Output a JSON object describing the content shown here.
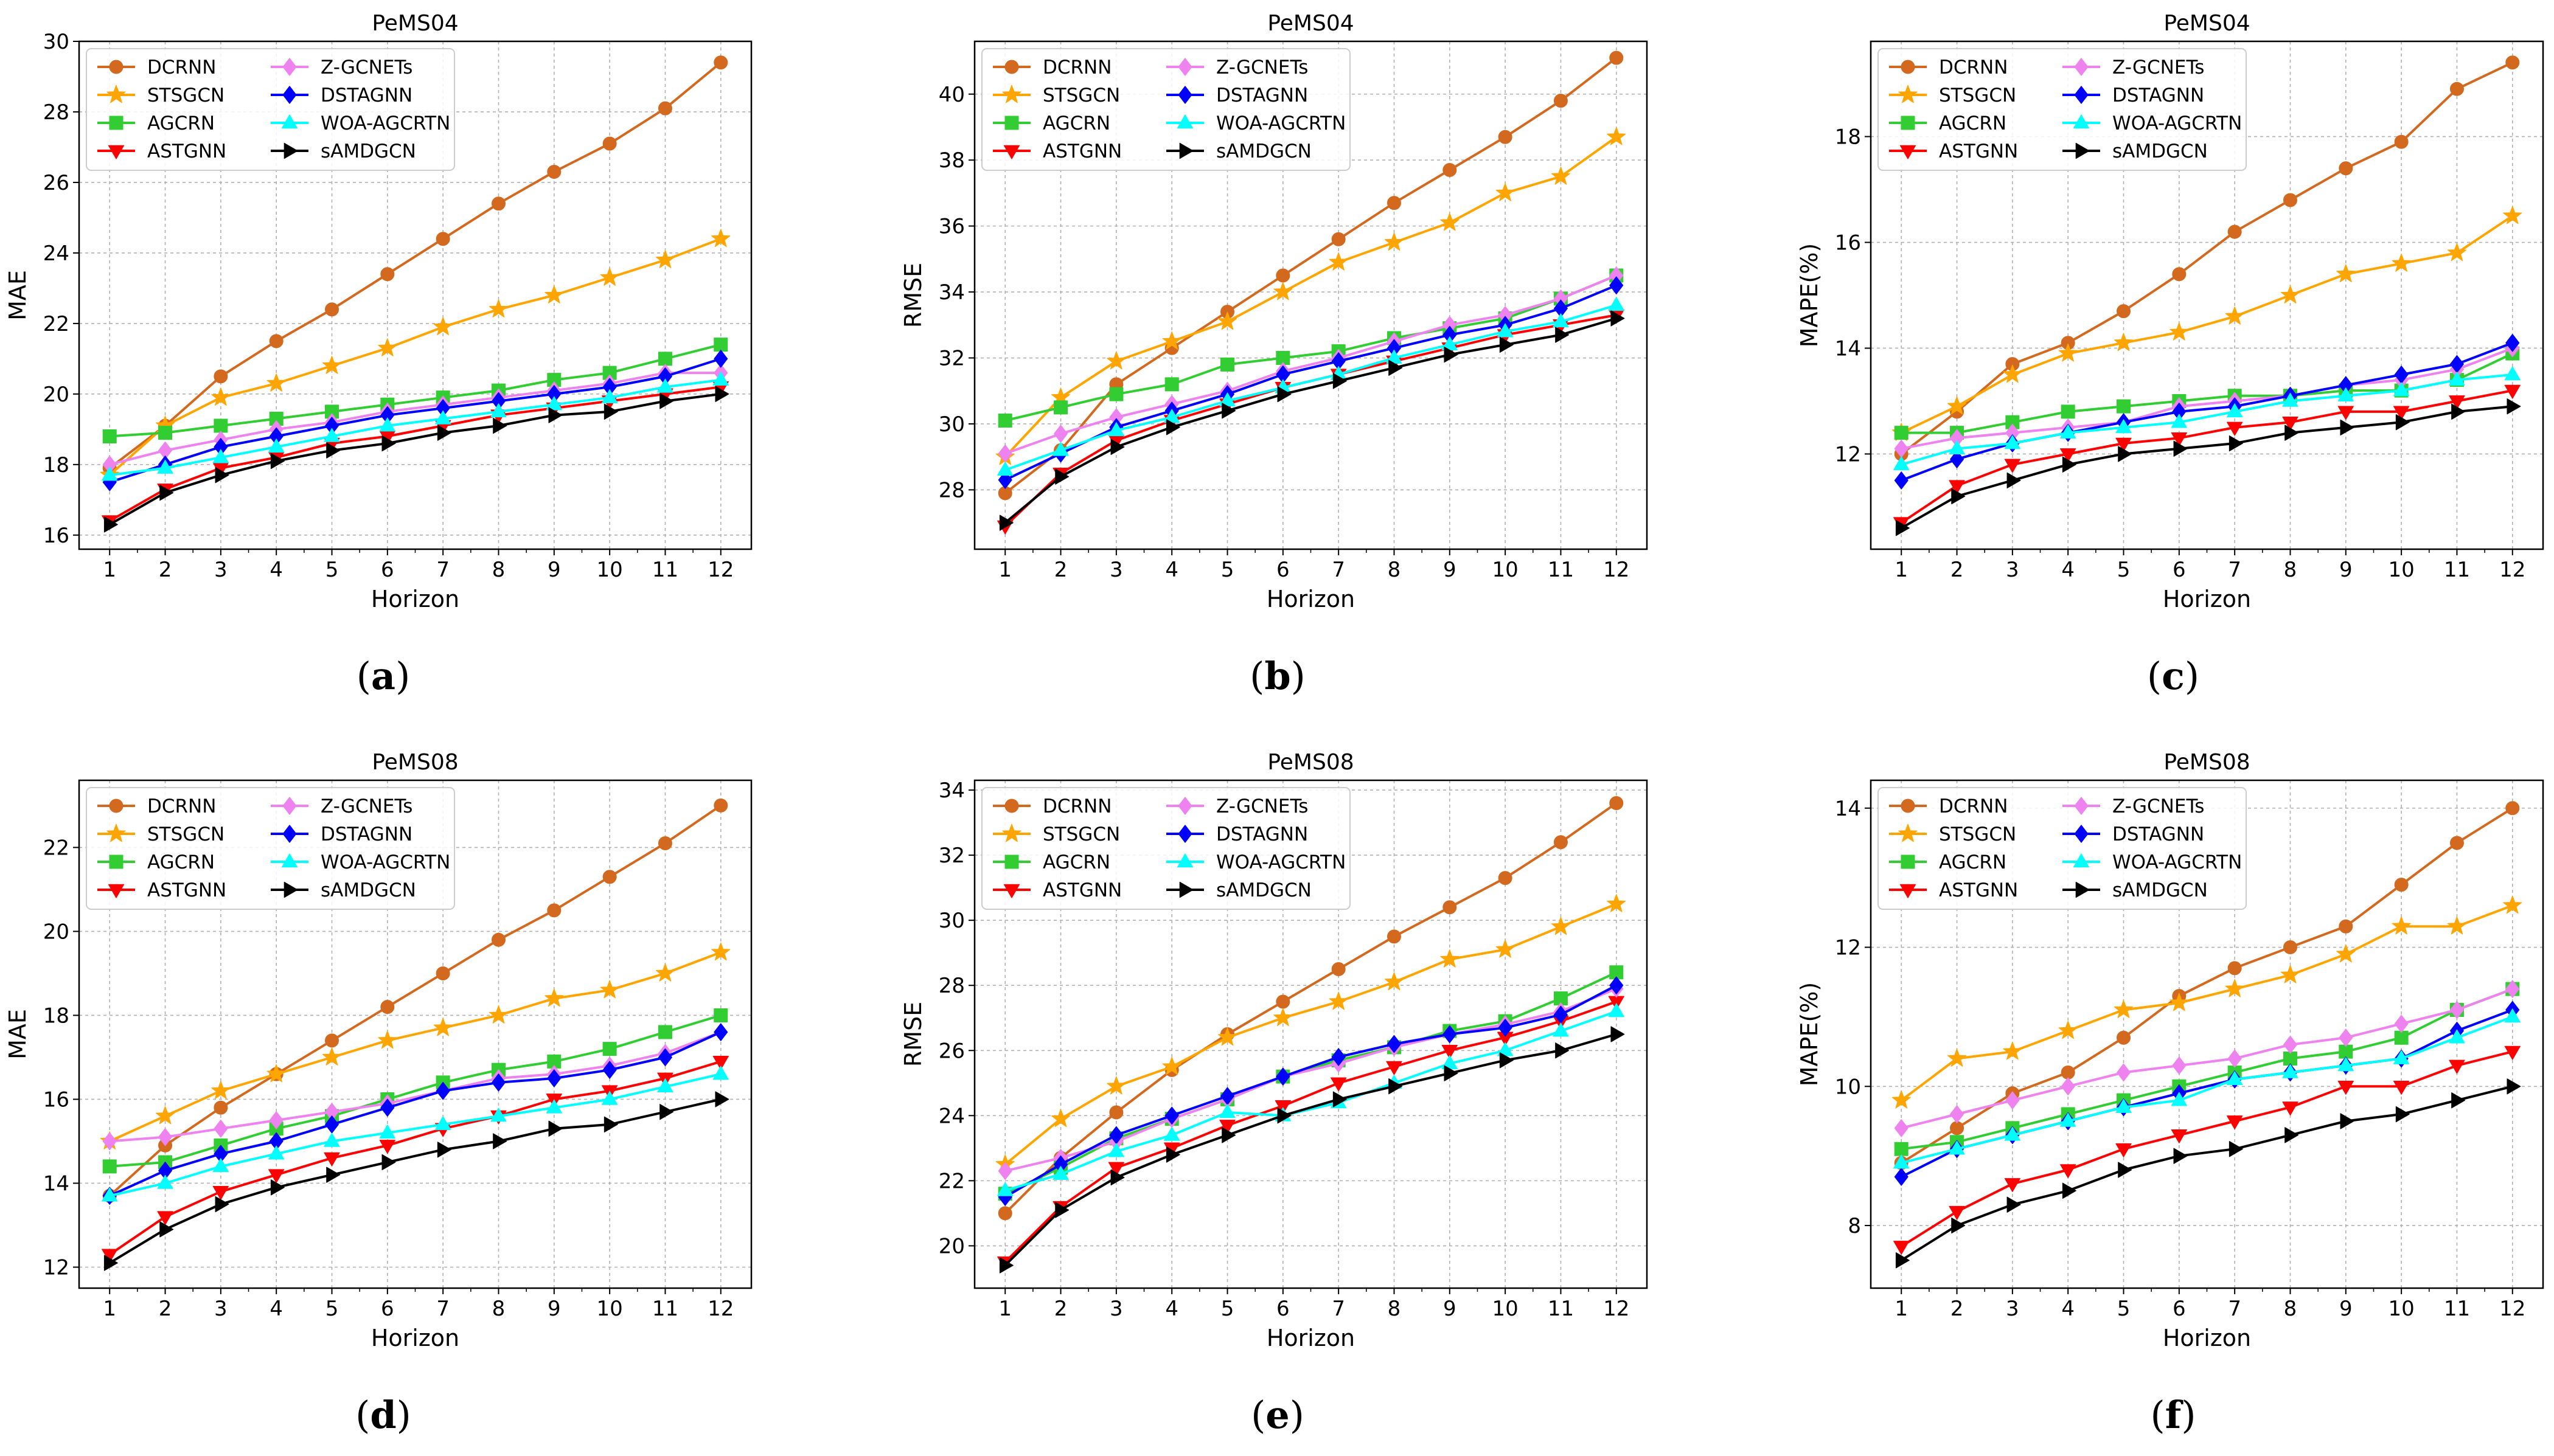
{
  "legend_labels": [
    "DCRNN",
    "STSGCN",
    "AGCRN",
    "ASTGNN",
    "Z-GCNETs",
    "DSTAGNN",
    "WOA-AGCRTN",
    "sAMDGCN"
  ],
  "series_style": [
    {
      "color": "#d2691e",
      "marker": "circle"
    },
    {
      "color": "#ffa500",
      "marker": "star"
    },
    {
      "color": "#32cd32",
      "marker": "square"
    },
    {
      "color": "#ff0000",
      "marker": "triangle-down"
    },
    {
      "color": "#ee82ee",
      "marker": "diamond"
    },
    {
      "color": "#0000ff",
      "marker": "diamond"
    },
    {
      "color": "#00ffff",
      "marker": "triangle-up"
    },
    {
      "color": "#000000",
      "marker": "triangle-right"
    }
  ],
  "captions": [
    "a",
    "b",
    "c",
    "d",
    "e",
    "f"
  ],
  "chart_data": [
    {
      "type": "line",
      "title": "PeMS04",
      "xlabel": "Horizon",
      "ylabel": "MAE",
      "x": [
        1,
        2,
        3,
        4,
        5,
        6,
        7,
        8,
        9,
        10,
        11,
        12
      ],
      "ylim": [
        15.6,
        30.0
      ],
      "yticks": [
        16,
        18,
        20,
        22,
        24,
        26,
        28,
        30
      ],
      "grid": true,
      "legend": "upper-left",
      "series": [
        {
          "name": "DCRNN",
          "values": [
            17.9,
            19.1,
            20.5,
            21.5,
            22.4,
            23.4,
            24.4,
            25.4,
            26.3,
            27.1,
            28.1,
            29.4
          ]
        },
        {
          "name": "STSGCN",
          "values": [
            17.7,
            19.1,
            19.9,
            20.3,
            20.8,
            21.3,
            21.9,
            22.4,
            22.8,
            23.3,
            23.8,
            24.4
          ]
        },
        {
          "name": "AGCRN",
          "values": [
            18.8,
            18.9,
            19.1,
            19.3,
            19.5,
            19.7,
            19.9,
            20.1,
            20.4,
            20.6,
            21.0,
            21.4
          ]
        },
        {
          "name": "ASTGNN",
          "values": [
            16.4,
            17.3,
            17.9,
            18.2,
            18.6,
            18.8,
            19.1,
            19.4,
            19.6,
            19.8,
            20.0,
            20.2
          ]
        },
        {
          "name": "Z-GCNETs",
          "values": [
            18.0,
            18.4,
            18.7,
            19.0,
            19.2,
            19.5,
            19.7,
            19.9,
            20.1,
            20.3,
            20.6,
            20.6
          ]
        },
        {
          "name": "DSTAGNN",
          "values": [
            17.5,
            18.0,
            18.5,
            18.8,
            19.1,
            19.4,
            19.6,
            19.8,
            20.0,
            20.2,
            20.5,
            21.0
          ]
        },
        {
          "name": "WOA-AGCRTN",
          "values": [
            17.7,
            17.9,
            18.2,
            18.5,
            18.8,
            19.1,
            19.3,
            19.5,
            19.7,
            19.9,
            20.2,
            20.4
          ]
        },
        {
          "name": "sAMDGCN",
          "values": [
            16.3,
            17.2,
            17.7,
            18.1,
            18.4,
            18.6,
            18.9,
            19.1,
            19.4,
            19.5,
            19.8,
            20.0
          ]
        }
      ]
    },
    {
      "type": "line",
      "title": "PeMS04",
      "xlabel": "Horizon",
      "ylabel": "RMSE",
      "x": [
        1,
        2,
        3,
        4,
        5,
        6,
        7,
        8,
        9,
        10,
        11,
        12
      ],
      "ylim": [
        26.2,
        41.6
      ],
      "yticks": [
        28,
        30,
        32,
        34,
        36,
        38,
        40
      ],
      "grid": true,
      "legend": "upper-left",
      "series": [
        {
          "name": "DCRNN",
          "values": [
            27.9,
            29.2,
            31.2,
            32.3,
            33.4,
            34.5,
            35.6,
            36.7,
            37.7,
            38.7,
            39.8,
            41.1
          ]
        },
        {
          "name": "STSGCN",
          "values": [
            29.0,
            30.8,
            31.9,
            32.5,
            33.1,
            34.0,
            34.9,
            35.5,
            36.1,
            37.0,
            37.5,
            38.7
          ]
        },
        {
          "name": "AGCRN",
          "values": [
            30.1,
            30.5,
            30.9,
            31.2,
            31.8,
            32.0,
            32.2,
            32.6,
            32.9,
            33.2,
            33.8,
            34.5
          ]
        },
        {
          "name": "ASTGNN",
          "values": [
            26.9,
            28.5,
            29.5,
            30.1,
            30.6,
            31.1,
            31.5,
            31.9,
            32.3,
            32.7,
            33.0,
            33.3
          ]
        },
        {
          "name": "Z-GCNETs",
          "values": [
            29.1,
            29.7,
            30.2,
            30.6,
            31.0,
            31.6,
            32.0,
            32.5,
            33.0,
            33.3,
            33.8,
            34.5
          ]
        },
        {
          "name": "DSTAGNN",
          "values": [
            28.3,
            29.1,
            29.9,
            30.4,
            30.9,
            31.5,
            31.9,
            32.3,
            32.7,
            33.0,
            33.5,
            34.2
          ]
        },
        {
          "name": "WOA-AGCRTN",
          "values": [
            28.6,
            29.2,
            29.8,
            30.2,
            30.7,
            31.1,
            31.5,
            32.0,
            32.4,
            32.8,
            33.1,
            33.6
          ]
        },
        {
          "name": "sAMDGCN",
          "values": [
            27.0,
            28.4,
            29.3,
            29.9,
            30.4,
            30.9,
            31.3,
            31.7,
            32.1,
            32.4,
            32.7,
            33.2
          ]
        }
      ]
    },
    {
      "type": "line",
      "title": "PeMS04",
      "xlabel": "Horizon",
      "ylabel": "MAPE(%)",
      "x": [
        1,
        2,
        3,
        4,
        5,
        6,
        7,
        8,
        9,
        10,
        11,
        12
      ],
      "ylim": [
        10.2,
        19.8
      ],
      "yticks": [
        12,
        14,
        16,
        18
      ],
      "grid": true,
      "legend": "upper-left",
      "series": [
        {
          "name": "DCRNN",
          "values": [
            12.0,
            12.8,
            13.7,
            14.1,
            14.7,
            15.4,
            16.2,
            16.8,
            17.4,
            17.9,
            18.9,
            19.4
          ]
        },
        {
          "name": "STSGCN",
          "values": [
            12.4,
            12.9,
            13.5,
            13.9,
            14.1,
            14.3,
            14.6,
            15.0,
            15.4,
            15.6,
            15.8,
            16.5
          ]
        },
        {
          "name": "AGCRN",
          "values": [
            12.4,
            12.4,
            12.6,
            12.8,
            12.9,
            13.0,
            13.1,
            13.1,
            13.2,
            13.2,
            13.4,
            13.9
          ]
        },
        {
          "name": "ASTGNN",
          "values": [
            10.7,
            11.4,
            11.8,
            12.0,
            12.2,
            12.3,
            12.5,
            12.6,
            12.8,
            12.8,
            13.0,
            13.2
          ]
        },
        {
          "name": "Z-GCNETs",
          "values": [
            12.1,
            12.3,
            12.4,
            12.5,
            12.6,
            12.9,
            13.0,
            13.1,
            13.3,
            13.4,
            13.6,
            14.0
          ]
        },
        {
          "name": "DSTAGNN",
          "values": [
            11.5,
            11.9,
            12.2,
            12.4,
            12.6,
            12.8,
            12.9,
            13.1,
            13.3,
            13.5,
            13.7,
            14.1
          ]
        },
        {
          "name": "WOA-AGCRTN",
          "values": [
            11.8,
            12.1,
            12.2,
            12.4,
            12.5,
            12.6,
            12.8,
            13.0,
            13.1,
            13.2,
            13.4,
            13.5
          ]
        },
        {
          "name": "sAMDGCN",
          "values": [
            10.6,
            11.2,
            11.5,
            11.8,
            12.0,
            12.1,
            12.2,
            12.4,
            12.5,
            12.6,
            12.8,
            12.9
          ]
        }
      ]
    },
    {
      "type": "line",
      "title": "PeMS08",
      "xlabel": "Horizon",
      "ylabel": "MAE",
      "x": [
        1,
        2,
        3,
        4,
        5,
        6,
        7,
        8,
        9,
        10,
        11,
        12
      ],
      "ylim": [
        11.5,
        23.6
      ],
      "yticks": [
        12,
        14,
        16,
        18,
        20,
        22
      ],
      "grid": true,
      "legend": "upper-left",
      "series": [
        {
          "name": "DCRNN",
          "values": [
            13.7,
            14.9,
            15.8,
            16.6,
            17.4,
            18.2,
            19.0,
            19.8,
            20.5,
            21.3,
            22.1,
            23.0
          ]
        },
        {
          "name": "STSGCN",
          "values": [
            15.0,
            15.6,
            16.2,
            16.6,
            17.0,
            17.4,
            17.7,
            18.0,
            18.4,
            18.6,
            19.0,
            19.5
          ]
        },
        {
          "name": "AGCRN",
          "values": [
            14.4,
            14.5,
            14.9,
            15.3,
            15.6,
            16.0,
            16.4,
            16.7,
            16.9,
            17.2,
            17.6,
            18.0
          ]
        },
        {
          "name": "ASTGNN",
          "values": [
            12.3,
            13.2,
            13.8,
            14.2,
            14.6,
            14.9,
            15.3,
            15.6,
            16.0,
            16.2,
            16.5,
            16.9
          ]
        },
        {
          "name": "Z-GCNETs",
          "values": [
            15.0,
            15.1,
            15.3,
            15.5,
            15.7,
            15.9,
            16.2,
            16.5,
            16.6,
            16.8,
            17.1,
            17.6
          ]
        },
        {
          "name": "DSTAGNN",
          "values": [
            13.7,
            14.3,
            14.7,
            15.0,
            15.4,
            15.8,
            16.2,
            16.4,
            16.5,
            16.7,
            17.0,
            17.6
          ]
        },
        {
          "name": "WOA-AGCRTN",
          "values": [
            13.7,
            14.0,
            14.4,
            14.7,
            15.0,
            15.2,
            15.4,
            15.6,
            15.8,
            16.0,
            16.3,
            16.6
          ]
        },
        {
          "name": "sAMDGCN",
          "values": [
            12.1,
            12.9,
            13.5,
            13.9,
            14.2,
            14.5,
            14.8,
            15.0,
            15.3,
            15.4,
            15.7,
            16.0
          ]
        }
      ]
    },
    {
      "type": "line",
      "title": "PeMS08",
      "xlabel": "Horizon",
      "ylabel": "RMSE",
      "x": [
        1,
        2,
        3,
        4,
        5,
        6,
        7,
        8,
        9,
        10,
        11,
        12
      ],
      "ylim": [
        18.7,
        34.3
      ],
      "yticks": [
        20,
        22,
        24,
        26,
        28,
        30,
        32,
        34
      ],
      "grid": true,
      "legend": "upper-left",
      "series": [
        {
          "name": "DCRNN",
          "values": [
            21.0,
            22.7,
            24.1,
            25.4,
            26.5,
            27.5,
            28.5,
            29.5,
            30.4,
            31.3,
            32.4,
            33.6
          ]
        },
        {
          "name": "STSGCN",
          "values": [
            22.5,
            23.9,
            24.9,
            25.5,
            26.4,
            27.0,
            27.5,
            28.1,
            28.8,
            29.1,
            29.8,
            30.5
          ]
        },
        {
          "name": "AGCRN",
          "values": [
            21.6,
            22.4,
            23.3,
            23.9,
            24.5,
            25.2,
            25.7,
            26.1,
            26.6,
            26.9,
            27.6,
            28.4
          ]
        },
        {
          "name": "ASTGNN",
          "values": [
            19.5,
            21.2,
            22.4,
            23.0,
            23.7,
            24.3,
            25.0,
            25.5,
            26.0,
            26.4,
            26.9,
            27.5
          ]
        },
        {
          "name": "Z-GCNETs",
          "values": [
            22.3,
            22.7,
            23.2,
            23.9,
            24.5,
            25.2,
            25.6,
            26.1,
            26.5,
            26.8,
            27.2,
            27.9
          ]
        },
        {
          "name": "DSTAGNN",
          "values": [
            21.5,
            22.5,
            23.4,
            24.0,
            24.6,
            25.2,
            25.8,
            26.2,
            26.5,
            26.7,
            27.1,
            28.0
          ]
        },
        {
          "name": "WOA-AGCRTN",
          "values": [
            21.7,
            22.2,
            22.9,
            23.4,
            24.1,
            24.0,
            24.4,
            25.0,
            25.6,
            26.0,
            26.6,
            27.2
          ]
        },
        {
          "name": "sAMDGCN",
          "values": [
            19.4,
            21.1,
            22.1,
            22.8,
            23.4,
            24.0,
            24.5,
            24.9,
            25.3,
            25.7,
            26.0,
            26.5
          ]
        }
      ]
    },
    {
      "type": "line",
      "title": "PeMS08",
      "xlabel": "Horizon",
      "ylabel": "MAPE(%)",
      "x": [
        1,
        2,
        3,
        4,
        5,
        6,
        7,
        8,
        9,
        10,
        11,
        12
      ],
      "ylim": [
        7.1,
        14.4
      ],
      "yticks": [
        8,
        10,
        12,
        14
      ],
      "grid": true,
      "legend": "upper-left",
      "series": [
        {
          "name": "DCRNN",
          "values": [
            8.9,
            9.4,
            9.9,
            10.2,
            10.7,
            11.3,
            11.7,
            12.0,
            12.3,
            12.9,
            13.5,
            14.0
          ]
        },
        {
          "name": "STSGCN",
          "values": [
            9.8,
            10.4,
            10.5,
            10.8,
            11.1,
            11.2,
            11.4,
            11.6,
            11.9,
            12.3,
            12.3,
            12.6
          ]
        },
        {
          "name": "AGCRN",
          "values": [
            9.1,
            9.2,
            9.4,
            9.6,
            9.8,
            10.0,
            10.2,
            10.4,
            10.5,
            10.7,
            11.1,
            11.4
          ]
        },
        {
          "name": "ASTGNN",
          "values": [
            7.7,
            8.2,
            8.6,
            8.8,
            9.1,
            9.3,
            9.5,
            9.7,
            10.0,
            10.0,
            10.3,
            10.5
          ]
        },
        {
          "name": "Z-GCNETs",
          "values": [
            9.4,
            9.6,
            9.8,
            10.0,
            10.2,
            10.3,
            10.4,
            10.6,
            10.7,
            10.9,
            11.1,
            11.4
          ]
        },
        {
          "name": "DSTAGNN",
          "values": [
            8.7,
            9.1,
            9.3,
            9.5,
            9.7,
            9.9,
            10.1,
            10.2,
            10.3,
            10.4,
            10.8,
            11.1
          ]
        },
        {
          "name": "WOA-AGCRTN",
          "values": [
            8.9,
            9.1,
            9.3,
            9.5,
            9.7,
            9.8,
            10.1,
            10.2,
            10.3,
            10.4,
            10.7,
            11.0
          ]
        },
        {
          "name": "sAMDGCN",
          "values": [
            7.5,
            8.0,
            8.3,
            8.5,
            8.8,
            9.0,
            9.1,
            9.3,
            9.5,
            9.6,
            9.8,
            10.0
          ]
        }
      ]
    }
  ]
}
